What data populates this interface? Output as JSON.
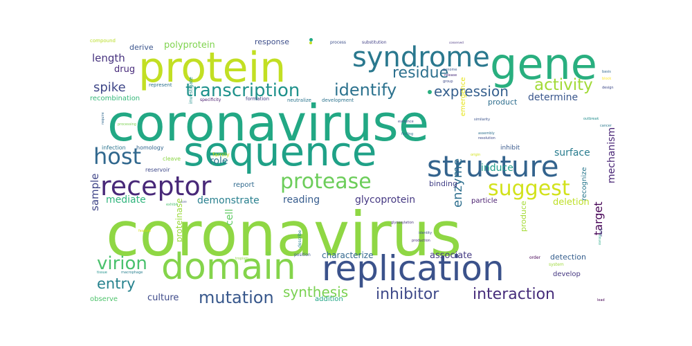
{
  "words": [
    {
      "text": "coronaviruse",
      "color": "#22a884"
    },
    {
      "text": "coronavirus",
      "color": "#8fd744"
    },
    {
      "text": "protein",
      "color": "#c2df23"
    },
    {
      "text": "sequence",
      "color": "#1fa187"
    },
    {
      "text": "gene",
      "color": "#29af7f"
    },
    {
      "text": "replication",
      "color": "#3b528b"
    },
    {
      "text": "domain",
      "color": "#84d44b"
    },
    {
      "text": "structure",
      "color": "#33638d"
    },
    {
      "text": "syndrome",
      "color": "#2a788e"
    },
    {
      "text": "receptor",
      "color": "#482878"
    },
    {
      "text": "protease",
      "color": "#6ccd5a"
    },
    {
      "text": "host",
      "color": "#31688e"
    },
    {
      "text": "suggest",
      "color": "#d2e21b"
    },
    {
      "text": "identify",
      "color": "#2c728e"
    },
    {
      "text": "transcription",
      "color": "#20928c"
    },
    {
      "text": "residue",
      "color": "#2d708e"
    },
    {
      "text": "activity",
      "color": "#a2da37"
    },
    {
      "text": "expression",
      "color": "#355f8d"
    },
    {
      "text": "virion",
      "color": "#4ac16d"
    },
    {
      "text": "mutation",
      "color": "#38588c"
    },
    {
      "text": "inhibitor",
      "color": "#3e4989"
    },
    {
      "text": "interaction",
      "color": "#472d7b"
    },
    {
      "text": "entry",
      "color": "#26828e"
    },
    {
      "text": "synthesis",
      "color": "#7ad151"
    },
    {
      "text": "spike",
      "color": "#3f4788"
    },
    {
      "text": "length",
      "color": "#46327e"
    },
    {
      "text": "sample",
      "color": "#404688"
    },
    {
      "text": "enzyme",
      "color": "#2e6f8e"
    },
    {
      "text": "target",
      "color": "#440154"
    },
    {
      "text": "glycoprotein",
      "color": "#453882"
    },
    {
      "text": "mechanism",
      "color": "#482475"
    },
    {
      "text": "demonstrate",
      "color": "#277f8e"
    },
    {
      "text": "reading",
      "color": "#365c8d"
    },
    {
      "text": "mediate",
      "color": "#2fb47c"
    },
    {
      "text": "determine",
      "color": "#39568c"
    },
    {
      "text": "surface",
      "color": "#287c8e"
    },
    {
      "text": "culture",
      "color": "#3e4a89"
    },
    {
      "text": "associate",
      "color": "#443a83"
    },
    {
      "text": "characterize",
      "color": "#31678e"
    },
    {
      "text": "deletion",
      "color": "#bddf26"
    },
    {
      "text": "induce",
      "color": "#1e9c89"
    },
    {
      "text": "role",
      "color": "#2a768e"
    },
    {
      "text": "cell",
      "color": "#5ec962"
    },
    {
      "text": "drug",
      "color": "#472a7a"
    },
    {
      "text": "derive",
      "color": "#3a548c"
    },
    {
      "text": "polyprotein",
      "color": "#7fd34e"
    },
    {
      "text": "response",
      "color": "#3d4e8a"
    },
    {
      "text": "recombination",
      "color": "#35b779"
    },
    {
      "text": "product",
      "color": "#2e6e8e"
    },
    {
      "text": "binding",
      "color": "#424086"
    },
    {
      "text": "particle",
      "color": "#481c6e"
    },
    {
      "text": "report",
      "color": "#306a8e"
    },
    {
      "text": "proteinase",
      "color": "#9bd93c"
    },
    {
      "text": "detection",
      "color": "#355e8d"
    },
    {
      "text": "develop",
      "color": "#453781"
    },
    {
      "text": "produce",
      "color": "#a5db36"
    },
    {
      "text": "recognize",
      "color": "#2a788e"
    },
    {
      "text": "emergence",
      "color": "#e5e419"
    },
    {
      "text": "observe",
      "color": "#4ec36b"
    },
    {
      "text": "addition",
      "color": "#21a585"
    },
    {
      "text": "infection",
      "color": "#2b748e"
    },
    {
      "text": "homology",
      "color": "#32648e"
    },
    {
      "text": "cleave",
      "color": "#8bd646"
    },
    {
      "text": "inhibit",
      "color": "#38598c"
    },
    {
      "text": "reservoir",
      "color": "#3f4889"
    },
    {
      "text": "represent",
      "color": "#2d718e"
    },
    {
      "text": "family",
      "color": "#c8e020"
    },
    {
      "text": "investigate",
      "color": "#21918c"
    },
    {
      "text": "formation",
      "color": "#433e85"
    },
    {
      "text": "specificity",
      "color": "#481a6c"
    },
    {
      "text": "neutralize",
      "color": "#2b758e"
    },
    {
      "text": "development",
      "color": "#2c738e"
    },
    {
      "text": "compound",
      "color": "#bade28"
    },
    {
      "text": "process",
      "color": "#3c4f8a"
    },
    {
      "text": "substitution",
      "color": "#424186"
    },
    {
      "text": "position",
      "color": "#3b518b"
    },
    {
      "text": "describe",
      "color": "#25848e"
    },
    {
      "text": "system",
      "color": "#9dd93b"
    },
    {
      "text": "order",
      "color": "#440154"
    },
    {
      "text": "identity",
      "color": "#3b528b"
    },
    {
      "text": "production",
      "color": "#472d7b"
    },
    {
      "text": "glycosylation",
      "color": "#46327e"
    },
    {
      "text": "evidence",
      "color": "#3e4c8a"
    },
    {
      "text": "similarity",
      "color": "#3b528b"
    },
    {
      "text": "finding",
      "color": "#2c728e"
    },
    {
      "text": "assembly",
      "color": "#2d708e"
    },
    {
      "text": "resolution",
      "color": "#3e4a89"
    },
    {
      "text": "require",
      "color": "#31688e"
    },
    {
      "text": "processing",
      "color": "#7ad151"
    },
    {
      "text": "exhibit",
      "color": "#4ac16d"
    },
    {
      "text": "tissue",
      "color": "#20928c"
    },
    {
      "text": "macrophage",
      "color": "#277f8e"
    },
    {
      "text": "feature",
      "color": "#d8e219"
    },
    {
      "text": "basis",
      "color": "#31688e"
    },
    {
      "text": "design",
      "color": "#3e4989"
    },
    {
      "text": "block",
      "color": "#fde725"
    },
    {
      "text": "outbreak",
      "color": "#228d8d"
    },
    {
      "text": "genome",
      "color": "#38588c"
    },
    {
      "text": "release",
      "color": "#472d7b"
    },
    {
      "text": "group",
      "color": "#3e4989"
    },
    {
      "text": "conserved",
      "color": "#46327e"
    },
    {
      "text": "origin",
      "color": "#d2e21b"
    },
    {
      "text": "tropism",
      "color": "#8fd744"
    },
    {
      "text": "lead",
      "color": "#440154"
    },
    {
      "text": "ability",
      "color": "#3b528b"
    },
    {
      "text": "cancer",
      "color": "#2a788e"
    },
    {
      "text": "core",
      "color": "#3e4a89"
    },
    {
      "text": "domain",
      "color": "#22a884"
    }
  ]
}
